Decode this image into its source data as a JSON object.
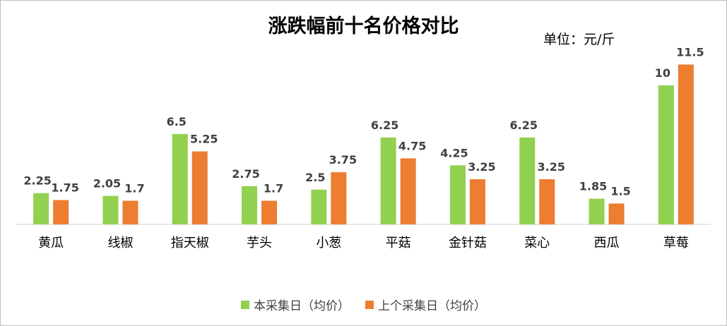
{
  "chart_data": {
    "type": "bar",
    "title": "涨跌幅前十名价格对比",
    "unit": "单位：元/斤",
    "categories": [
      "黄瓜",
      "线椒",
      "指天椒",
      "芋头",
      "小葱",
      "平菇",
      "金针菇",
      "菜心",
      "西瓜",
      "草莓"
    ],
    "series": [
      {
        "name": "本采集日（均价）",
        "color": "#92d050",
        "values": [
          2.25,
          2.05,
          6.5,
          2.75,
          2.5,
          6.25,
          4.25,
          6.25,
          1.85,
          10
        ],
        "labels": [
          "2.25",
          "2.05",
          "6.5",
          "2.75",
          "2.5",
          "6.25",
          "4.25",
          "6.25",
          "1.85",
          "10"
        ]
      },
      {
        "name": "上个采集日（均价）",
        "color": "#ed7d31",
        "values": [
          1.75,
          1.7,
          5.25,
          1.7,
          3.75,
          4.75,
          3.25,
          3.25,
          1.5,
          11.5
        ],
        "labels": [
          "1.75",
          "1.7",
          "5.25",
          "1.7",
          "3.75",
          "4.75",
          "3.25",
          "3.25",
          "1.5",
          "11.5"
        ]
      }
    ],
    "ylim": [
      0,
      12
    ],
    "grid": false,
    "legend_position": "bottom"
  }
}
